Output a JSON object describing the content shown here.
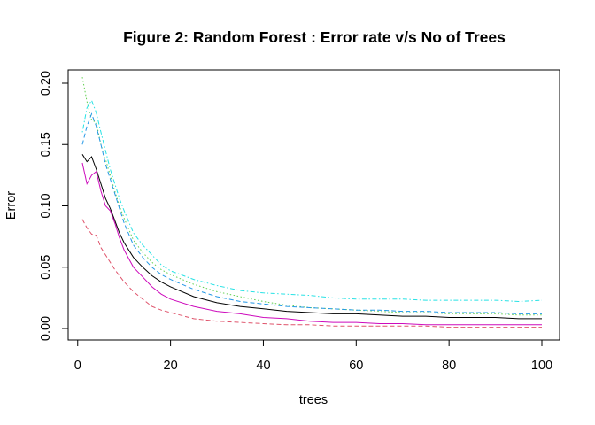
{
  "chart_data": {
    "type": "line",
    "title": "Figure 2: Random Forest : Error rate v/s No of Trees",
    "xlabel": "trees",
    "ylabel": "Error",
    "xlim": [
      1,
      100
    ],
    "ylim": [
      0,
      0.2
    ],
    "xticks": [
      0,
      20,
      40,
      60,
      80,
      100
    ],
    "yticks": [
      0.0,
      0.05,
      0.1,
      0.15,
      0.2
    ],
    "ytick_labels": [
      "0.00",
      "0.05",
      "0.10",
      "0.15",
      "0.20"
    ],
    "xtick_labels": [
      "0",
      "20",
      "40",
      "60",
      "80",
      "100"
    ],
    "grid": false,
    "legend": "none",
    "series": [
      {
        "color": "#000000",
        "dash": "solid",
        "points": [
          [
            1,
            0.142
          ],
          [
            2,
            0.136
          ],
          [
            3,
            0.14
          ],
          [
            4,
            0.13
          ],
          [
            5,
            0.118
          ],
          [
            6,
            0.106
          ],
          [
            7,
            0.098
          ],
          [
            8,
            0.088
          ],
          [
            9,
            0.078
          ],
          [
            10,
            0.07
          ],
          [
            12,
            0.058
          ],
          [
            14,
            0.05
          ],
          [
            16,
            0.043
          ],
          [
            18,
            0.038
          ],
          [
            20,
            0.034
          ],
          [
            25,
            0.026
          ],
          [
            30,
            0.021
          ],
          [
            35,
            0.018
          ],
          [
            40,
            0.016
          ],
          [
            45,
            0.014
          ],
          [
            50,
            0.013
          ],
          [
            55,
            0.012
          ],
          [
            60,
            0.012
          ],
          [
            65,
            0.011
          ],
          [
            70,
            0.01
          ],
          [
            75,
            0.01
          ],
          [
            80,
            0.009
          ],
          [
            85,
            0.009
          ],
          [
            90,
            0.009
          ],
          [
            95,
            0.008
          ],
          [
            100,
            0.008
          ]
        ]
      },
      {
        "color": "#DF536B",
        "dash": "dashed",
        "points": [
          [
            1,
            0.089
          ],
          [
            2,
            0.082
          ],
          [
            3,
            0.077
          ],
          [
            4,
            0.076
          ],
          [
            5,
            0.066
          ],
          [
            6,
            0.06
          ],
          [
            7,
            0.054
          ],
          [
            8,
            0.048
          ],
          [
            9,
            0.043
          ],
          [
            10,
            0.038
          ],
          [
            12,
            0.03
          ],
          [
            14,
            0.024
          ],
          [
            16,
            0.018
          ],
          [
            18,
            0.015
          ],
          [
            20,
            0.013
          ],
          [
            25,
            0.008
          ],
          [
            30,
            0.006
          ],
          [
            35,
            0.005
          ],
          [
            40,
            0.004
          ],
          [
            45,
            0.003
          ],
          [
            50,
            0.003
          ],
          [
            55,
            0.002
          ],
          [
            60,
            0.002
          ],
          [
            65,
            0.002
          ],
          [
            70,
            0.002
          ],
          [
            75,
            0.002
          ],
          [
            80,
            0.001
          ],
          [
            85,
            0.001
          ],
          [
            90,
            0.001
          ],
          [
            95,
            0.001
          ],
          [
            100,
            0.001
          ]
        ]
      },
      {
        "color": "#61D04F",
        "dash": "dotted",
        "points": [
          [
            1,
            0.205
          ],
          [
            2,
            0.185
          ],
          [
            3,
            0.17
          ],
          [
            4,
            0.168
          ],
          [
            5,
            0.15
          ],
          [
            6,
            0.138
          ],
          [
            7,
            0.125
          ],
          [
            8,
            0.112
          ],
          [
            9,
            0.1
          ],
          [
            10,
            0.09
          ],
          [
            12,
            0.072
          ],
          [
            14,
            0.062
          ],
          [
            16,
            0.054
          ],
          [
            18,
            0.048
          ],
          [
            20,
            0.044
          ],
          [
            25,
            0.036
          ],
          [
            30,
            0.03
          ],
          [
            35,
            0.026
          ],
          [
            40,
            0.022
          ],
          [
            45,
            0.019
          ],
          [
            50,
            0.017
          ],
          [
            55,
            0.016
          ],
          [
            60,
            0.015
          ],
          [
            65,
            0.014
          ],
          [
            70,
            0.013
          ],
          [
            75,
            0.013
          ],
          [
            80,
            0.012
          ],
          [
            85,
            0.012
          ],
          [
            90,
            0.012
          ],
          [
            95,
            0.011
          ],
          [
            100,
            0.011
          ]
        ]
      },
      {
        "color": "#2297E6",
        "dash": "dashed",
        "points": [
          [
            1,
            0.15
          ],
          [
            2,
            0.165
          ],
          [
            3,
            0.175
          ],
          [
            4,
            0.165
          ],
          [
            5,
            0.15
          ],
          [
            6,
            0.134
          ],
          [
            7,
            0.122
          ],
          [
            8,
            0.11
          ],
          [
            9,
            0.098
          ],
          [
            10,
            0.086
          ],
          [
            12,
            0.068
          ],
          [
            14,
            0.058
          ],
          [
            16,
            0.05
          ],
          [
            18,
            0.044
          ],
          [
            20,
            0.04
          ],
          [
            25,
            0.032
          ],
          [
            30,
            0.026
          ],
          [
            35,
            0.022
          ],
          [
            40,
            0.02
          ],
          [
            45,
            0.018
          ],
          [
            50,
            0.017
          ],
          [
            55,
            0.016
          ],
          [
            60,
            0.015
          ],
          [
            65,
            0.015
          ],
          [
            70,
            0.014
          ],
          [
            75,
            0.014
          ],
          [
            80,
            0.013
          ],
          [
            85,
            0.013
          ],
          [
            90,
            0.013
          ],
          [
            95,
            0.012
          ],
          [
            100,
            0.012
          ]
        ]
      },
      {
        "color": "#28E2E5",
        "dash": "dashdot",
        "points": [
          [
            1,
            0.16
          ],
          [
            2,
            0.18
          ],
          [
            3,
            0.186
          ],
          [
            4,
            0.176
          ],
          [
            5,
            0.16
          ],
          [
            6,
            0.145
          ],
          [
            7,
            0.13
          ],
          [
            8,
            0.118
          ],
          [
            9,
            0.106
          ],
          [
            10,
            0.096
          ],
          [
            12,
            0.078
          ],
          [
            14,
            0.068
          ],
          [
            16,
            0.06
          ],
          [
            18,
            0.052
          ],
          [
            20,
            0.047
          ],
          [
            25,
            0.04
          ],
          [
            30,
            0.035
          ],
          [
            35,
            0.031
          ],
          [
            40,
            0.029
          ],
          [
            45,
            0.028
          ],
          [
            50,
            0.027
          ],
          [
            55,
            0.025
          ],
          [
            60,
            0.024
          ],
          [
            65,
            0.024
          ],
          [
            70,
            0.024
          ],
          [
            75,
            0.023
          ],
          [
            80,
            0.023
          ],
          [
            85,
            0.023
          ],
          [
            90,
            0.023
          ],
          [
            95,
            0.022
          ],
          [
            100,
            0.023
          ]
        ]
      },
      {
        "color": "#CD0BBC",
        "dash": "solid",
        "points": [
          [
            1,
            0.135
          ],
          [
            2,
            0.118
          ],
          [
            3,
            0.125
          ],
          [
            4,
            0.128
          ],
          [
            5,
            0.112
          ],
          [
            6,
            0.1
          ],
          [
            7,
            0.096
          ],
          [
            8,
            0.086
          ],
          [
            9,
            0.074
          ],
          [
            10,
            0.064
          ],
          [
            12,
            0.05
          ],
          [
            14,
            0.042
          ],
          [
            16,
            0.034
          ],
          [
            18,
            0.028
          ],
          [
            20,
            0.024
          ],
          [
            25,
            0.018
          ],
          [
            30,
            0.014
          ],
          [
            35,
            0.012
          ],
          [
            40,
            0.009
          ],
          [
            45,
            0.008
          ],
          [
            50,
            0.006
          ],
          [
            55,
            0.005
          ],
          [
            60,
            0.005
          ],
          [
            65,
            0.004
          ],
          [
            70,
            0.004
          ],
          [
            75,
            0.003
          ],
          [
            80,
            0.003
          ],
          [
            85,
            0.003
          ],
          [
            90,
            0.003
          ],
          [
            95,
            0.003
          ],
          [
            100,
            0.003
          ]
        ]
      }
    ]
  }
}
